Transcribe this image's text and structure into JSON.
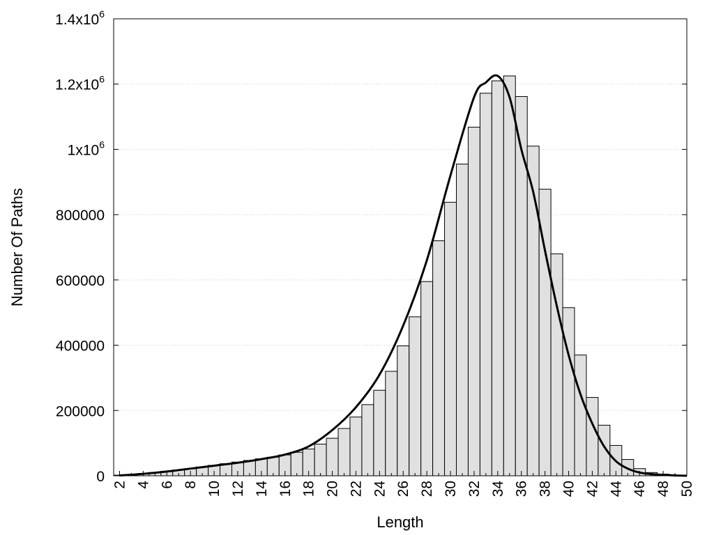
{
  "chart_data": {
    "type": "bar",
    "title": "",
    "xlabel": "Length",
    "ylabel": "Number Of Paths",
    "xlim": [
      1.5,
      50
    ],
    "ylim": [
      0,
      1400000
    ],
    "x_ticks": [
      2,
      4,
      6,
      8,
      10,
      12,
      14,
      16,
      18,
      20,
      22,
      24,
      26,
      28,
      30,
      32,
      34,
      36,
      38,
      40,
      42,
      44,
      46,
      48,
      50
    ],
    "y_ticks": [
      {
        "value": 0,
        "label": "0"
      },
      {
        "value": 200000,
        "label": "200000"
      },
      {
        "value": 400000,
        "label": "400000"
      },
      {
        "value": 600000,
        "label": "600000"
      },
      {
        "value": 800000,
        "label": "800000"
      },
      {
        "value": 1000000,
        "label": "1x10",
        "sup": "6"
      },
      {
        "value": 1200000,
        "label": "1.2x10",
        "sup": "6"
      },
      {
        "value": 1400000,
        "label": "1.4x10",
        "sup": "6"
      }
    ],
    "grid": "horizontal dotted",
    "x": [
      2,
      3,
      4,
      5,
      6,
      7,
      8,
      9,
      10,
      11,
      12,
      13,
      14,
      15,
      16,
      17,
      18,
      19,
      20,
      21,
      22,
      23,
      24,
      25,
      26,
      27,
      28,
      29,
      30,
      31,
      32,
      33,
      34,
      35,
      36,
      37,
      38,
      39,
      40,
      41,
      42,
      43,
      44,
      45,
      46,
      47,
      48,
      49
    ],
    "values": [
      2000,
      4000,
      7000,
      10000,
      14000,
      18000,
      22000,
      27000,
      32000,
      37000,
      42000,
      47000,
      52000,
      57000,
      64000,
      72000,
      82000,
      97000,
      115000,
      145000,
      180000,
      218000,
      262000,
      320000,
      398000,
      487000,
      595000,
      720000,
      838000,
      955000,
      1068000,
      1172000,
      1210000,
      1225000,
      1162000,
      1010000,
      878000,
      680000,
      515000,
      370000,
      240000,
      155000,
      93000,
      50000,
      22000,
      10000,
      5000,
      2000
    ],
    "curve": [
      [
        2,
        1000
      ],
      [
        4,
        6000
      ],
      [
        6,
        13000
      ],
      [
        8,
        22000
      ],
      [
        10,
        31000
      ],
      [
        12,
        40000
      ],
      [
        14,
        51000
      ],
      [
        16,
        65000
      ],
      [
        18,
        90000
      ],
      [
        20,
        140000
      ],
      [
        22,
        210000
      ],
      [
        24,
        310000
      ],
      [
        26,
        460000
      ],
      [
        28,
        660000
      ],
      [
        30,
        920000
      ],
      [
        32,
        1160000
      ],
      [
        33,
        1205000
      ],
      [
        34,
        1225000
      ],
      [
        35,
        1160000
      ],
      [
        36,
        1000000
      ],
      [
        37,
        870000
      ],
      [
        38,
        690000
      ],
      [
        39,
        520000
      ],
      [
        40,
        370000
      ],
      [
        41,
        250000
      ],
      [
        42,
        160000
      ],
      [
        43,
        90000
      ],
      [
        44,
        45000
      ],
      [
        45,
        22000
      ],
      [
        46,
        10000
      ],
      [
        47,
        5000
      ],
      [
        48,
        3000
      ],
      [
        49,
        1000
      ],
      [
        50,
        0
      ]
    ]
  }
}
